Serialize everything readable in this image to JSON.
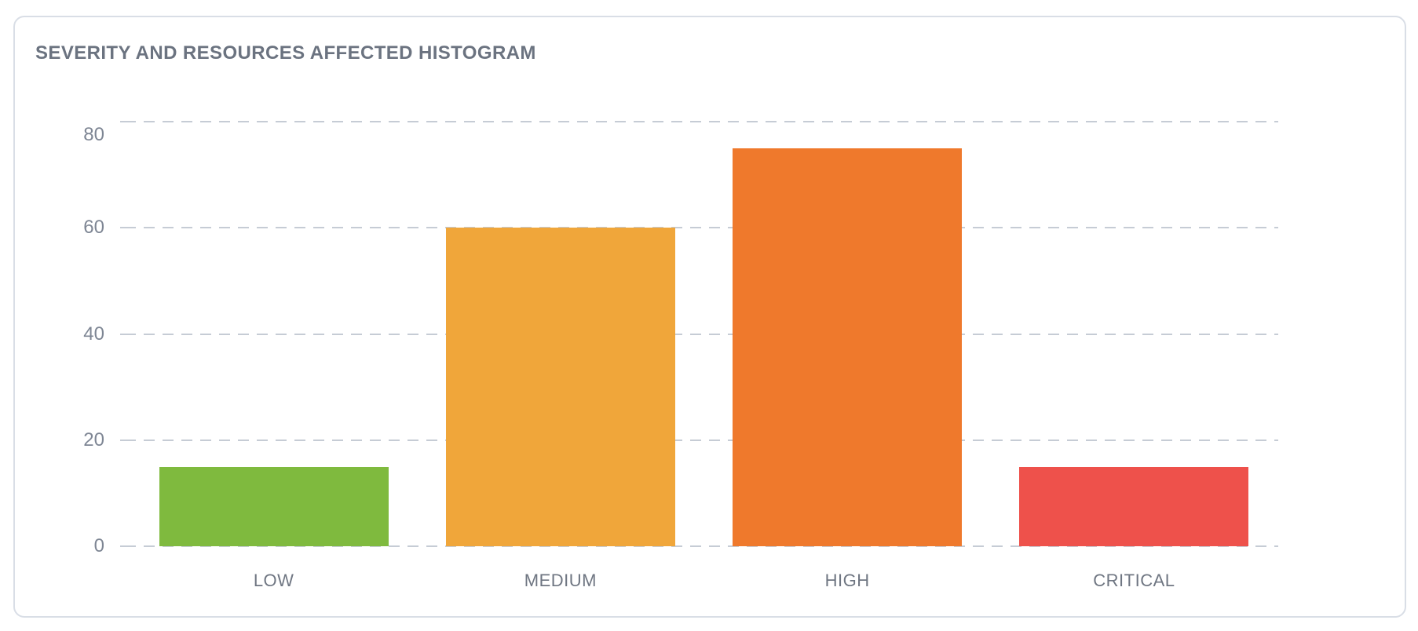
{
  "card": {
    "title": "SEVERITY AND RESOURCES AFFECTED HISTOGRAM"
  },
  "chart_data": {
    "type": "bar",
    "title": "SEVERITY AND RESOURCES AFFECTED HISTOGRAM",
    "categories": [
      "LOW",
      "MEDIUM",
      "HIGH",
      "CRITICAL"
    ],
    "values": [
      15,
      60,
      75,
      15
    ],
    "bar_colors": [
      "#7FBA3E",
      "#F0A63A",
      "#EF792C",
      "#EE514B"
    ],
    "xlabel": "",
    "ylabel": "",
    "ylim": [
      0,
      80
    ],
    "yticks": [
      0,
      20,
      40,
      60,
      80
    ],
    "grid": "horizontal-dashed",
    "legend_position": "none"
  },
  "colors": {
    "severity_low": "#7FBA3E",
    "severity_medium": "#F0A63A",
    "severity_high": "#EF792C",
    "severity_critical": "#EE514B",
    "gridline": "#C6CCD5",
    "card_border": "#D9DEE6",
    "card_background": "#FFFFFF",
    "title_text": "#6B7380",
    "axis_text": "#7E8694",
    "category_text": "#6F7682"
  }
}
